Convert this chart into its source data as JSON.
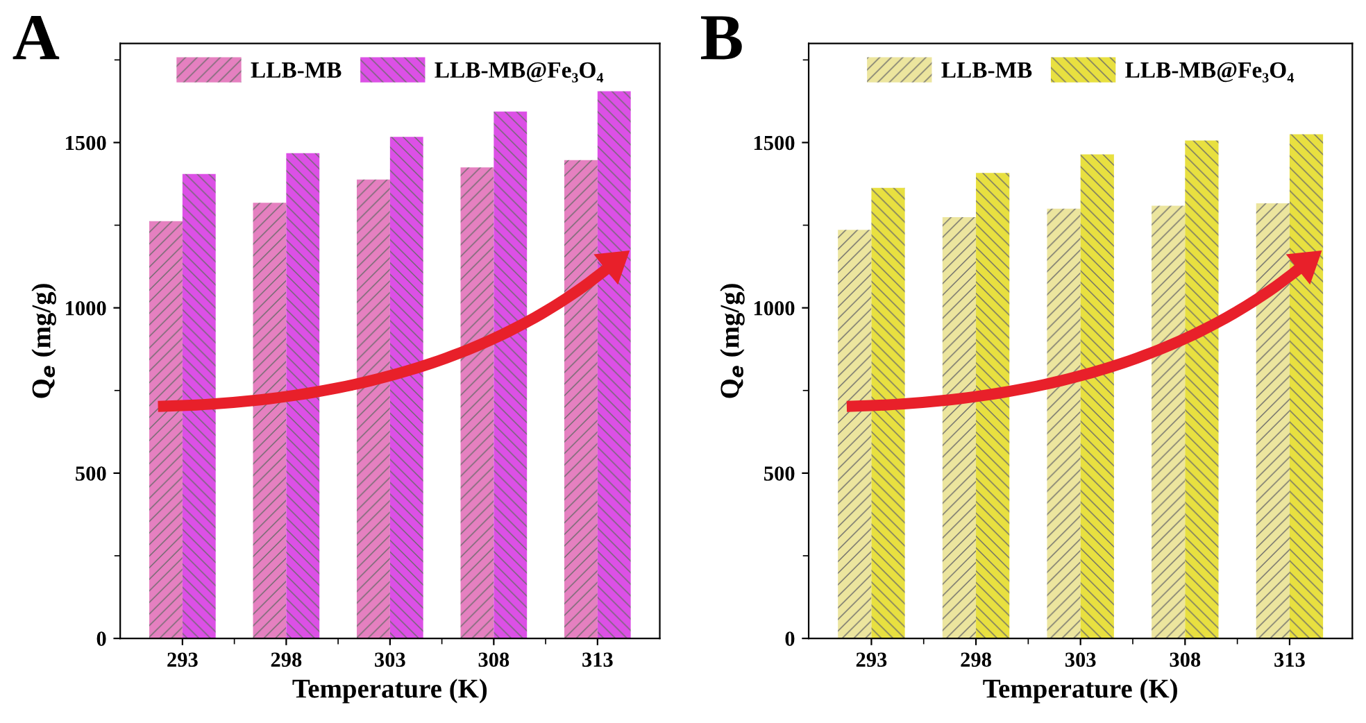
{
  "chart_data": [
    {
      "type": "bar",
      "title": "A",
      "xlabel": "Temperature (K)",
      "ylabel": "Q$_{e}$ (mg/g)",
      "categories": [
        "293",
        "298",
        "303",
        "308",
        "313"
      ],
      "series": [
        {
          "name": "LLB-MB",
          "color": "#e580c0",
          "values": [
            1262,
            1318,
            1388,
            1425,
            1447
          ]
        },
        {
          "name": "LLB-MB@Fe₃O₄",
          "color": "#dc50e6",
          "values": [
            1405,
            1468,
            1517,
            1594,
            1655
          ]
        }
      ],
      "ylim": [
        0,
        1800
      ],
      "yticks": [
        0,
        500,
        1000,
        1500
      ],
      "legend": "top",
      "grid": false
    },
    {
      "type": "bar",
      "title": "B",
      "xlabel": "Temperature (K)",
      "ylabel": "Q$_{e}$ (mg/g)",
      "categories": [
        "293",
        "298",
        "303",
        "308",
        "313"
      ],
      "series": [
        {
          "name": "LLB-MB",
          "color": "#ece59e",
          "values": [
            1236,
            1274,
            1300,
            1309,
            1316
          ]
        },
        {
          "name": "LLB-MB@Fe₃O₄",
          "color": "#e8e040",
          "values": [
            1363,
            1408,
            1464,
            1506,
            1525
          ]
        }
      ],
      "ylim": [
        0,
        1800
      ],
      "yticks": [
        0,
        500,
        1000,
        1500
      ],
      "legend": "top",
      "grid": false
    }
  ]
}
